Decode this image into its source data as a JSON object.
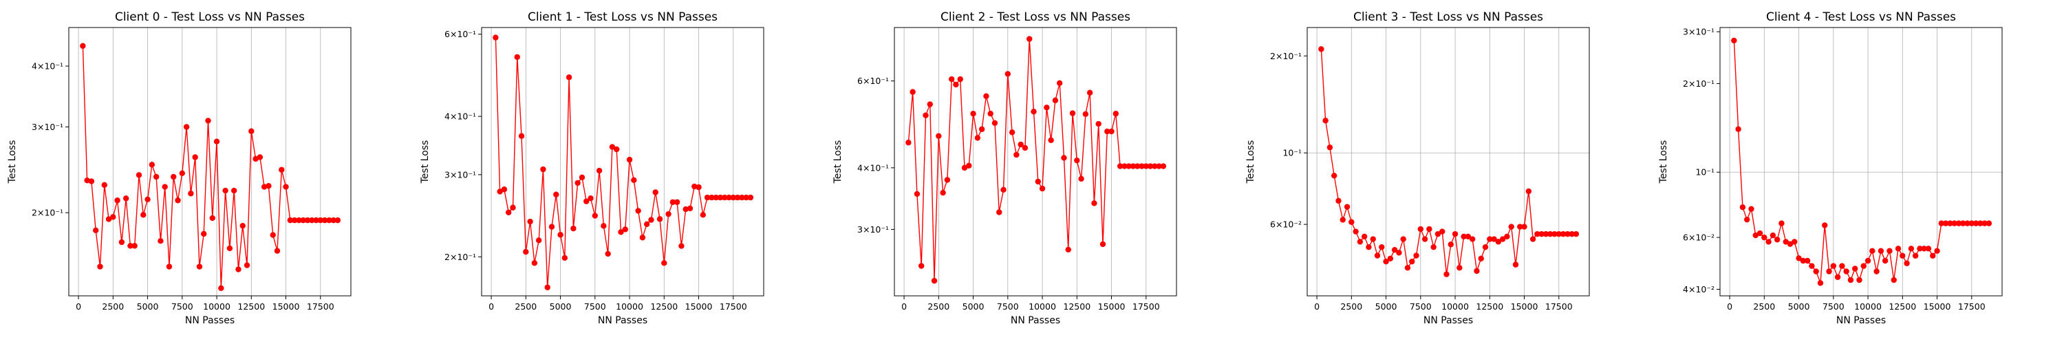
{
  "chart_data": [
    {
      "type": "line",
      "title": "Client 0 - Test Loss vs NN Passes",
      "xlabel": "NN Passes",
      "ylabel": "Test Loss",
      "yscale": "log",
      "xlim": [
        -700,
        19700
      ],
      "ylim": [
        0.135,
        0.48
      ],
      "xticks": [
        0,
        2500,
        5000,
        7500,
        10000,
        12500,
        15000,
        17500
      ],
      "xtick_labels": [
        "0",
        "2500",
        "5000",
        "7500",
        "10000",
        "12500",
        "15000",
        "17500"
      ],
      "yticks": [
        0.2,
        0.3,
        0.4
      ],
      "ytick_labels": [
        "2×10⁻¹",
        "3×10⁻¹",
        "4×10⁻¹"
      ],
      "grid": "vertical",
      "color": "#ff0000",
      "series": [
        {
          "x": [
            313,
            625,
            938,
            1250,
            1563,
            1875,
            2188,
            2500,
            2813,
            3125,
            3438,
            3750,
            4063,
            4375,
            4688,
            5000,
            5313,
            5625,
            5938,
            6250,
            6563,
            6875,
            7188,
            7500,
            7813,
            8125,
            8438,
            8750,
            9063,
            9375,
            9688,
            10000,
            10313,
            10625,
            10938,
            11250,
            11563,
            11875,
            12188,
            12500,
            12813,
            13125,
            13438,
            13750,
            14063,
            14375,
            14688,
            15000,
            15313,
            15625,
            15938,
            16250,
            16563,
            16875,
            17188,
            17500,
            17813,
            18125,
            18438,
            18750
          ],
          "y": [
            0.44,
            0.233,
            0.232,
            0.184,
            0.155,
            0.228,
            0.194,
            0.196,
            0.212,
            0.174,
            0.214,
            0.171,
            0.171,
            0.239,
            0.198,
            0.213,
            0.251,
            0.237,
            0.175,
            0.226,
            0.155,
            0.237,
            0.212,
            0.241,
            0.3,
            0.219,
            0.26,
            0.155,
            0.181,
            0.309,
            0.195,
            0.28,
            0.14,
            0.222,
            0.169,
            0.222,
            0.153,
            0.188,
            0.156,
            0.294,
            0.258,
            0.26,
            0.226,
            0.227,
            0.18,
            0.167,
            0.245,
            0.226,
            0.193,
            0.193,
            0.193,
            0.193,
            0.193,
            0.193,
            0.193,
            0.193,
            0.193,
            0.193,
            0.193,
            0.193
          ]
        }
      ]
    },
    {
      "type": "line",
      "title": "Client 1 - Test Loss vs NN Passes",
      "xlabel": "NN Passes",
      "ylabel": "Test Loss",
      "yscale": "log",
      "xlim": [
        -700,
        19700
      ],
      "ylim": [
        0.165,
        0.62
      ],
      "xticks": [
        0,
        2500,
        5000,
        7500,
        10000,
        12500,
        15000,
        17500
      ],
      "xtick_labels": [
        "0",
        "2500",
        "5000",
        "7500",
        "10000",
        "12500",
        "15000",
        "17500"
      ],
      "yticks": [
        0.2,
        0.3,
        0.4,
        0.6
      ],
      "ytick_labels": [
        "2×10⁻¹",
        "3×10⁻¹",
        "4×10⁻¹",
        "6×10⁻¹"
      ],
      "grid": "vertical",
      "color": "#ff0000",
      "series": [
        {
          "x": [
            313,
            625,
            938,
            1250,
            1563,
            1875,
            2188,
            2500,
            2813,
            3125,
            3438,
            3750,
            4063,
            4375,
            4688,
            5000,
            5313,
            5625,
            5938,
            6250,
            6563,
            6875,
            7188,
            7500,
            7813,
            8125,
            8438,
            8750,
            9063,
            9375,
            9688,
            10000,
            10313,
            10625,
            10938,
            11250,
            11563,
            11875,
            12188,
            12500,
            12813,
            13125,
            13438,
            13750,
            14063,
            14375,
            14688,
            15000,
            15313,
            15625,
            15938,
            16250,
            16563,
            16875,
            17188,
            17500,
            17813,
            18125,
            18438,
            18750
          ],
          "y": [
            0.59,
            0.276,
            0.279,
            0.249,
            0.255,
            0.536,
            0.363,
            0.205,
            0.238,
            0.194,
            0.217,
            0.308,
            0.172,
            0.232,
            0.272,
            0.223,
            0.199,
            0.485,
            0.23,
            0.288,
            0.296,
            0.263,
            0.267,
            0.245,
            0.306,
            0.233,
            0.203,
            0.344,
            0.34,
            0.226,
            0.229,
            0.323,
            0.292,
            0.251,
            0.22,
            0.235,
            0.24,
            0.275,
            0.241,
            0.194,
            0.247,
            0.262,
            0.262,
            0.211,
            0.253,
            0.254,
            0.283,
            0.282,
            0.246,
            0.268,
            0.268,
            0.268,
            0.268,
            0.268,
            0.268,
            0.268,
            0.268,
            0.268,
            0.268,
            0.268
          ]
        }
      ]
    },
    {
      "type": "line",
      "title": "Client 2 - Test Loss vs NN Passes",
      "xlabel": "NN Passes",
      "ylabel": "Test Loss",
      "yscale": "log",
      "xlim": [
        -700,
        19700
      ],
      "ylim": [
        0.22,
        0.77
      ],
      "xticks": [
        0,
        2500,
        5000,
        7500,
        10000,
        12500,
        15000,
        17500
      ],
      "xtick_labels": [
        "0",
        "2500",
        "5000",
        "7500",
        "10000",
        "12500",
        "15000",
        "17500"
      ],
      "yticks": [
        0.3,
        0.4,
        0.6
      ],
      "ytick_labels": [
        "3×10⁻¹",
        "4×10⁻¹",
        "6×10⁻¹"
      ],
      "grid": "vertical",
      "color": "#ff0000",
      "series": [
        {
          "x": [
            313,
            625,
            938,
            1250,
            1563,
            1875,
            2188,
            2500,
            2813,
            3125,
            3438,
            3750,
            4063,
            4375,
            4688,
            5000,
            5313,
            5625,
            5938,
            6250,
            6563,
            6875,
            7188,
            7500,
            7813,
            8125,
            8438,
            8750,
            9063,
            9375,
            9688,
            10000,
            10313,
            10625,
            10938,
            11250,
            11563,
            11875,
            12188,
            12500,
            12813,
            13125,
            13438,
            13750,
            14063,
            14375,
            14688,
            15000,
            15313,
            15625,
            15938,
            16250,
            16563,
            16875,
            17188,
            17500,
            17813,
            18125,
            18438,
            18750
          ],
          "y": [
            0.45,
            0.57,
            0.354,
            0.253,
            0.511,
            0.538,
            0.236,
            0.464,
            0.356,
            0.378,
            0.605,
            0.59,
            0.605,
            0.4,
            0.404,
            0.515,
            0.46,
            0.479,
            0.559,
            0.515,
            0.493,
            0.325,
            0.361,
            0.62,
            0.472,
            0.425,
            0.446,
            0.439,
            0.73,
            0.52,
            0.375,
            0.363,
            0.53,
            0.455,
            0.548,
            0.594,
            0.419,
            0.273,
            0.516,
            0.414,
            0.38,
            0.514,
            0.568,
            0.339,
            0.491,
            0.28,
            0.474,
            0.474,
            0.515,
            0.403,
            0.403,
            0.403,
            0.403,
            0.403,
            0.403,
            0.403,
            0.403,
            0.403,
            0.403,
            0.403
          ]
        }
      ]
    },
    {
      "type": "line",
      "title": "Client 3 - Test Loss vs NN Passes",
      "xlabel": "NN Passes",
      "ylabel": "Test Loss",
      "yscale": "log",
      "xlim": [
        -700,
        19700
      ],
      "ylim": [
        0.036,
        0.245
      ],
      "xticks": [
        0,
        2500,
        5000,
        7500,
        10000,
        12500,
        15000,
        17500
      ],
      "xtick_labels": [
        "0",
        "2500",
        "5000",
        "7500",
        "10000",
        "12500",
        "15000",
        "17500"
      ],
      "yticks": [
        0.06,
        0.1,
        0.2
      ],
      "ytick_labels": [
        "6×10⁻²",
        "10⁻¹",
        "2×10⁻¹"
      ],
      "grid": "both",
      "color": "#ff0000",
      "series": [
        {
          "x": [
            313,
            625,
            938,
            1250,
            1563,
            1875,
            2188,
            2500,
            2813,
            3125,
            3438,
            3750,
            4063,
            4375,
            4688,
            5000,
            5313,
            5625,
            5938,
            6250,
            6563,
            6875,
            7188,
            7500,
            7813,
            8125,
            8438,
            8750,
            9063,
            9375,
            9688,
            10000,
            10313,
            10625,
            10938,
            11250,
            11563,
            11875,
            12188,
            12500,
            12813,
            13125,
            13438,
            13750,
            14063,
            14375,
            14688,
            15000,
            15313,
            15625,
            15938,
            16250,
            16563,
            16875,
            17188,
            17500,
            17813,
            18125,
            18438,
            18750
          ],
          "y": [
            0.21,
            0.126,
            0.104,
            0.085,
            0.071,
            0.062,
            0.068,
            0.061,
            0.057,
            0.053,
            0.055,
            0.051,
            0.054,
            0.048,
            0.051,
            0.046,
            0.047,
            0.05,
            0.049,
            0.054,
            0.044,
            0.046,
            0.048,
            0.058,
            0.054,
            0.058,
            0.051,
            0.056,
            0.057,
            0.042,
            0.052,
            0.056,
            0.044,
            0.055,
            0.055,
            0.054,
            0.043,
            0.047,
            0.051,
            0.054,
            0.054,
            0.053,
            0.054,
            0.055,
            0.059,
            0.045,
            0.059,
            0.059,
            0.076,
            0.054,
            0.056,
            0.056,
            0.056,
            0.056,
            0.056,
            0.056,
            0.056,
            0.056,
            0.056,
            0.056
          ]
        }
      ]
    },
    {
      "type": "line",
      "title": "Client 4 - Test Loss vs NN Passes",
      "xlabel": "NN Passes",
      "ylabel": "Test Loss",
      "yscale": "log",
      "xlim": [
        -700,
        19700
      ],
      "ylim": [
        0.038,
        0.31
      ],
      "xticks": [
        0,
        2500,
        5000,
        7500,
        10000,
        12500,
        15000,
        17500
      ],
      "xtick_labels": [
        "0",
        "2500",
        "5000",
        "7500",
        "10000",
        "12500",
        "15000",
        "17500"
      ],
      "yticks": [
        0.04,
        0.06,
        0.1,
        0.2,
        0.3
      ],
      "ytick_labels": [
        "4×10⁻²",
        "6×10⁻²",
        "10⁻¹",
        "2×10⁻¹",
        "3×10⁻¹"
      ],
      "grid": "both",
      "color": "#ff0000",
      "series": [
        {
          "x": [
            313,
            625,
            938,
            1250,
            1563,
            1875,
            2188,
            2500,
            2813,
            3125,
            3438,
            3750,
            4063,
            4375,
            4688,
            5000,
            5313,
            5625,
            5938,
            6250,
            6563,
            6875,
            7188,
            7500,
            7813,
            8125,
            8438,
            8750,
            9063,
            9375,
            9688,
            10000,
            10313,
            10625,
            10938,
            11250,
            11563,
            11875,
            12188,
            12500,
            12813,
            13125,
            13438,
            13750,
            14063,
            14375,
            14688,
            15000,
            15313,
            15625,
            15938,
            16250,
            16563,
            16875,
            17188,
            17500,
            17813,
            18125,
            18438,
            18750
          ],
          "y": [
            0.28,
            0.14,
            0.076,
            0.069,
            0.075,
            0.061,
            0.062,
            0.06,
            0.058,
            0.061,
            0.059,
            0.067,
            0.058,
            0.057,
            0.058,
            0.051,
            0.05,
            0.05,
            0.048,
            0.046,
            0.042,
            0.066,
            0.046,
            0.048,
            0.044,
            0.048,
            0.046,
            0.043,
            0.047,
            0.043,
            0.048,
            0.05,
            0.054,
            0.046,
            0.054,
            0.05,
            0.054,
            0.043,
            0.055,
            0.052,
            0.049,
            0.055,
            0.052,
            0.055,
            0.055,
            0.055,
            0.052,
            0.054,
            0.067,
            0.067,
            0.067,
            0.067,
            0.067,
            0.067,
            0.067,
            0.067,
            0.067,
            0.067,
            0.067,
            0.067
          ]
        }
      ]
    }
  ]
}
